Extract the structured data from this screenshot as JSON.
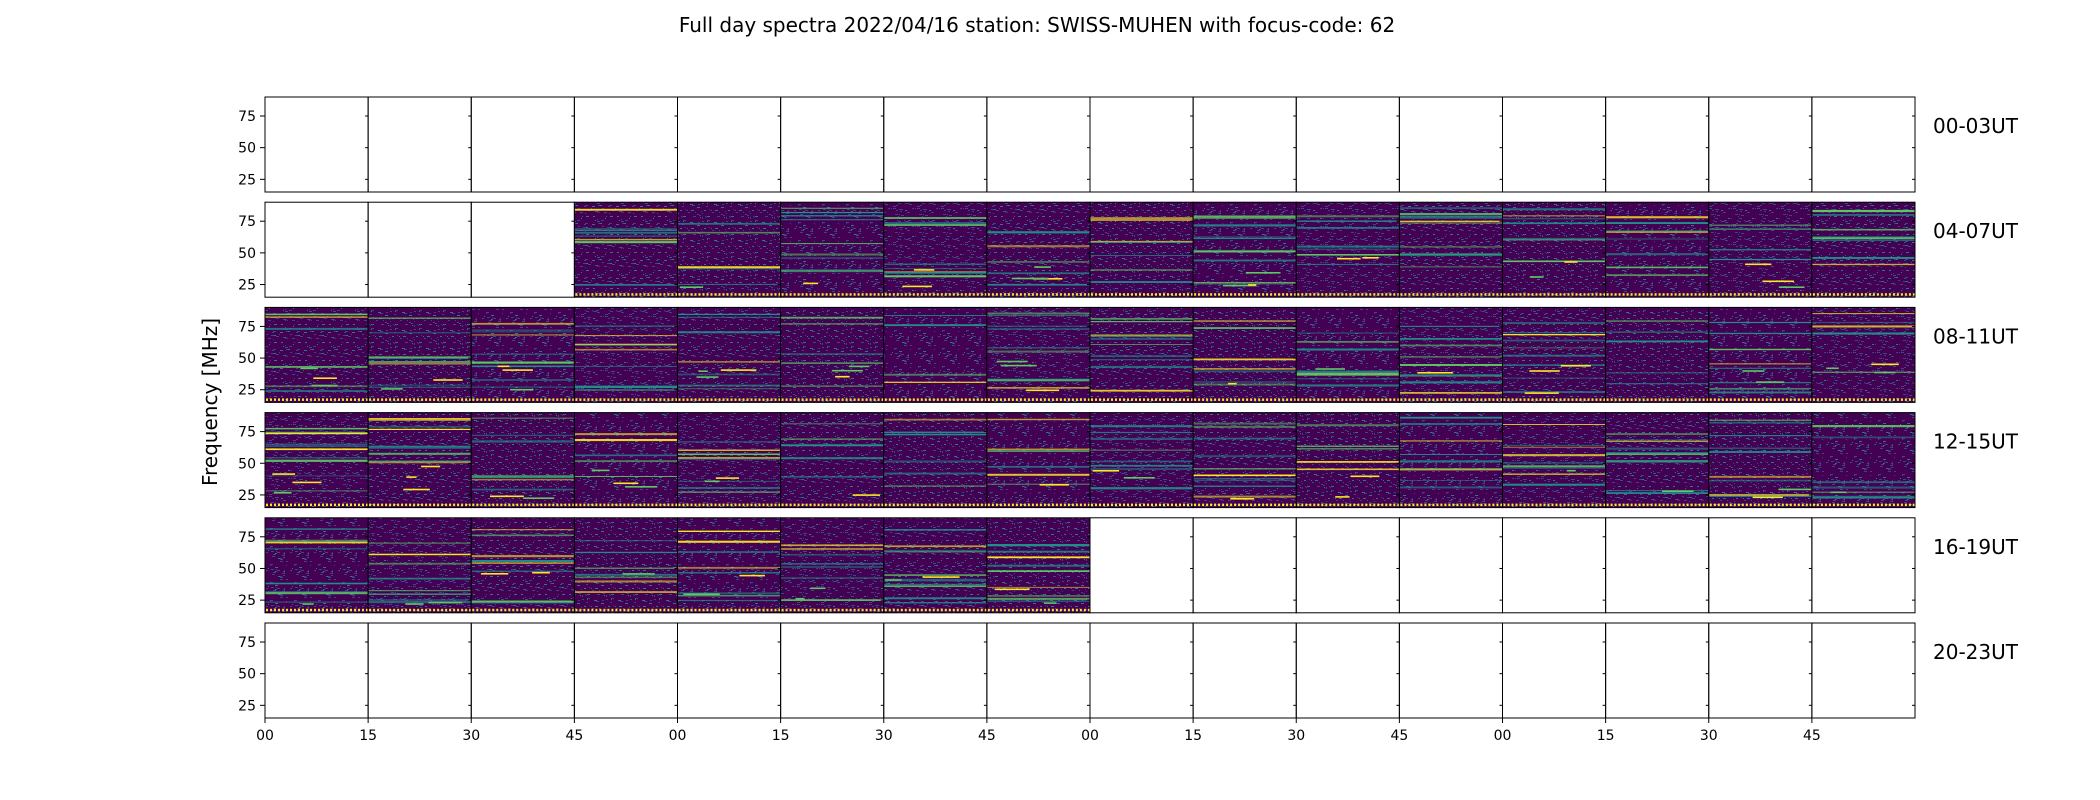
{
  "chart_data": {
    "type": "heatmap",
    "title": "Full day spectra 2022/04/16 station: SWISS-MUHEN with focus-code: 62",
    "ylabel": "Frequency [MHz]",
    "xlabel": "",
    "y_ticks": [
      25,
      50,
      75
    ],
    "ylim": [
      15,
      90
    ],
    "x_tick_labels": [
      "00",
      "15",
      "30",
      "45",
      "00",
      "15",
      "30",
      "45",
      "00",
      "15",
      "30",
      "45",
      "00",
      "15",
      "30",
      "45"
    ],
    "panels_per_row": 16,
    "minutes_per_panel": 15,
    "rows": [
      {
        "label": "00-03UT",
        "data_panels": []
      },
      {
        "label": "04-07UT",
        "data_panels": [
          3,
          4,
          5,
          6,
          7,
          8,
          9,
          10,
          11,
          12,
          13,
          14,
          15
        ]
      },
      {
        "label": "08-11UT",
        "data_panels": [
          0,
          1,
          2,
          3,
          4,
          5,
          6,
          7,
          8,
          9,
          10,
          11,
          12,
          13,
          14,
          15
        ]
      },
      {
        "label": "12-15UT",
        "data_panels": [
          0,
          1,
          2,
          3,
          4,
          5,
          6,
          7,
          8,
          9,
          10,
          11,
          12,
          13,
          14,
          15
        ]
      },
      {
        "label": "16-19UT",
        "data_panels": [
          0,
          1,
          2,
          3,
          4,
          5,
          6,
          7
        ]
      },
      {
        "label": "20-23UT",
        "data_panels": []
      }
    ],
    "colormap": [
      "#440154",
      "#3b528b",
      "#21918c",
      "#5ec962",
      "#fde725"
    ],
    "grid": false,
    "legend": "none"
  }
}
